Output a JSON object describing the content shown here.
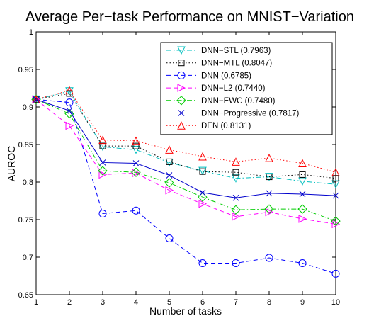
{
  "chart_data": {
    "type": "line",
    "title": "Average Per−task Performance on MNIST−Variation",
    "xlabel": "Number of tasks",
    "ylabel": "AUROC",
    "x": [
      1,
      2,
      3,
      4,
      5,
      6,
      7,
      8,
      9,
      10
    ],
    "xlim": [
      1,
      10
    ],
    "ylim": [
      0.65,
      1
    ],
    "xticks": [
      "1",
      "2",
      "3",
      "4",
      "5",
      "6",
      "7",
      "8",
      "9",
      "10"
    ],
    "yticks": [
      "0.65",
      "0.7",
      "0.75",
      "0.8",
      "0.85",
      "0.9",
      "0.95",
      "1"
    ],
    "grid": false,
    "legend_position": "top-right",
    "series": [
      {
        "name": "DNN−STL (0.7963)",
        "color": "#00BFBF",
        "dash": "dashdot",
        "marker": "triangle-down",
        "values": [
          0.91,
          0.921,
          0.847,
          0.843,
          0.826,
          0.815,
          0.805,
          0.807,
          0.801,
          0.797
        ]
      },
      {
        "name": "DNN−MTL (0.8047)",
        "color": "#000000",
        "dash": "dotted",
        "marker": "square",
        "values": [
          0.91,
          0.918,
          0.848,
          0.848,
          0.827,
          0.814,
          0.813,
          0.807,
          0.81,
          0.805
        ]
      },
      {
        "name": "DNN (0.6785)",
        "color": "#0000FF",
        "dash": "dashed",
        "marker": "circle",
        "values": [
          0.91,
          0.906,
          0.758,
          0.762,
          0.725,
          0.692,
          0.692,
          0.699,
          0.692,
          0.678
        ]
      },
      {
        "name": "DNN−L2 (0.7440)",
        "color": "#FF00FF",
        "dash": "dashed",
        "marker": "triangle-right",
        "values": [
          0.91,
          0.875,
          0.81,
          0.812,
          0.789,
          0.771,
          0.754,
          0.76,
          0.751,
          0.744
        ]
      },
      {
        "name": "DNN−EWC (0.7480)",
        "color": "#00CC00",
        "dash": "dashdot",
        "marker": "diamond",
        "values": [
          0.91,
          0.891,
          0.815,
          0.813,
          0.799,
          0.78,
          0.763,
          0.764,
          0.764,
          0.748
        ]
      },
      {
        "name": "DNN−Progressive (0.7817)",
        "color": "#0000CC",
        "dash": "solid",
        "marker": "x",
        "values": [
          0.91,
          0.895,
          0.826,
          0.825,
          0.809,
          0.786,
          0.779,
          0.785,
          0.784,
          0.782
        ]
      },
      {
        "name": "DEN (0.8131)",
        "color": "#FF0000",
        "dash": "dotted",
        "marker": "triangle-up",
        "values": [
          0.91,
          0.922,
          0.856,
          0.855,
          0.843,
          0.834,
          0.827,
          0.832,
          0.825,
          0.813
        ]
      }
    ]
  }
}
